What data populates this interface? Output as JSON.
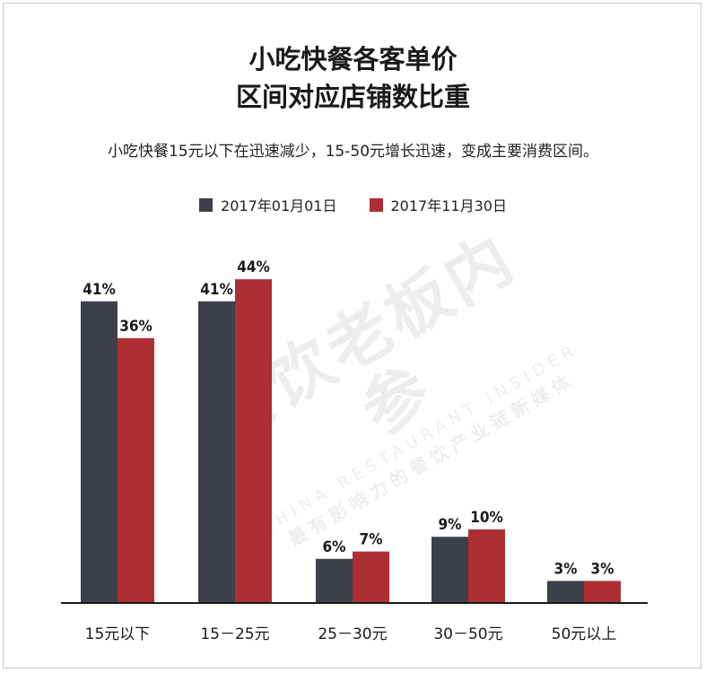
{
  "title_line1": "小吃快餐各客单价",
  "title_line2": "区间对应店铺数比重",
  "subtitle": "小吃快餐15元以下在迅速减少，15-50元增长迅速，变成主要消费区间。",
  "watermark": {
    "main": "餐饮老板内参",
    "english": "CHINA RESTAURANT INSIDER",
    "tagline": "最有影响力的餐饮产业链新媒体"
  },
  "colors": {
    "series_2017_01": "#3d4048",
    "series_2017_11": "#ad2f34",
    "axis": "#1a1a1a"
  },
  "chart_data": {
    "type": "bar",
    "categories": [
      "15元以下",
      "15－25元",
      "25－30元",
      "30－50元",
      "50元以上"
    ],
    "series": [
      {
        "name": "2017年01月01日",
        "values": [
          41,
          41,
          6,
          9,
          3
        ]
      },
      {
        "name": "2017年11月30日",
        "values": [
          36,
          44,
          7,
          10,
          3
        ]
      }
    ],
    "value_labels": [
      [
        "41%",
        "41%",
        "6%",
        "9%",
        "3%"
      ],
      [
        "36%",
        "44%",
        "7%",
        "10%",
        "3%"
      ]
    ],
    "ylim": [
      0,
      50
    ],
    "grid": false,
    "legend_position": "top-center"
  }
}
